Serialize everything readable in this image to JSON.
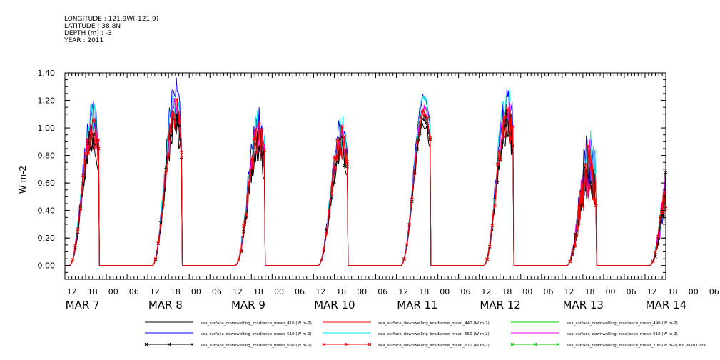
{
  "header": {
    "longitude": "LONGITUDE : 121.9W(-121.9)",
    "latitude": "LATITUDE : 38.8N",
    "depth": "DEPTH (m) : -3",
    "year": "YEAR : 2011"
  },
  "chart_data": {
    "type": "line",
    "title": "",
    "ylabel": "W m-2",
    "xlabel": "",
    "ylim": [
      -0.1,
      1.4
    ],
    "xlim_hours": [
      0,
      174
    ],
    "grid": false,
    "legend_placement": "bottom",
    "yticks": [
      "0.00",
      "0.20",
      "0.40",
      "0.60",
      "0.80",
      "1.00",
      "1.20",
      "1.40"
    ],
    "hour_tick_labels": [
      "12",
      "18",
      "00",
      "06",
      "12",
      "18",
      "00",
      "06",
      "12",
      "18",
      "00",
      "06",
      "12",
      "18",
      "00",
      "06",
      "12",
      "18",
      "00",
      "06",
      "12",
      "18",
      "00",
      "06",
      "12",
      "18",
      "00",
      "06",
      "12",
      "18",
      "00",
      "06"
    ],
    "date_labels": [
      "MAR  7",
      "MAR  8",
      "MAR  9",
      "MAR 10",
      "MAR 11",
      "MAR 12",
      "MAR 13",
      "MAR 14"
    ],
    "days": [
      {
        "peak": 1.02,
        "noise": 0.12
      },
      {
        "peak": 1.14,
        "noise": 0.14
      },
      {
        "peak": 0.95,
        "noise": 0.14
      },
      {
        "peak": 0.93,
        "noise": 0.12
      },
      {
        "peak": 1.15,
        "noise": 0.04
      },
      {
        "peak": 1.12,
        "noise": 0.14
      },
      {
        "peak": 0.72,
        "noise": 0.22
      }
    ],
    "series": [
      {
        "name": "sea_surface_downwelling_irradiance_mean_410 (W m-2)",
        "color": "#000000",
        "scale": 0.89,
        "marker": "none"
      },
      {
        "name": "sea_surface_downwelling_irradiance_mean_440 (W m-2)",
        "color": "#ff0000",
        "scale": 0.94,
        "marker": "none"
      },
      {
        "name": "sea_surface_downwelling_irradiance_mean_490 (W m-2)",
        "color": "#00cc00",
        "scale": 1.02,
        "marker": "none"
      },
      {
        "name": "sea_surface_downwelling_irradiance_mean_510 (W m-2)",
        "color": "#0000ff",
        "scale": 1.08,
        "marker": "none"
      },
      {
        "name": "sea_surface_downwelling_irradiance_mean_550 (W m-2)",
        "color": "#00e5ee",
        "scale": 1.05,
        "marker": "none"
      },
      {
        "name": "sea_surface_downwelling_irradiance_mean_610 (W m-2)",
        "color": "#ee00ee",
        "scale": 0.99,
        "marker": "none"
      },
      {
        "name": "sea_surface_downwelling_irradiance_mean_650 (W m-2)",
        "color": "#000000",
        "scale": 0.93,
        "marker": "x"
      },
      {
        "name": "sea_surface_downwelling_irradiance_mean_670 (W m-2)",
        "color": "#ff0000",
        "scale": 0.97,
        "marker": "x"
      },
      {
        "name": "sea_surface_downwelling_irradiance_mean_700 (W m-2) No Valid Data",
        "color": "#00cc00",
        "scale": 0,
        "marker": "x"
      }
    ]
  }
}
